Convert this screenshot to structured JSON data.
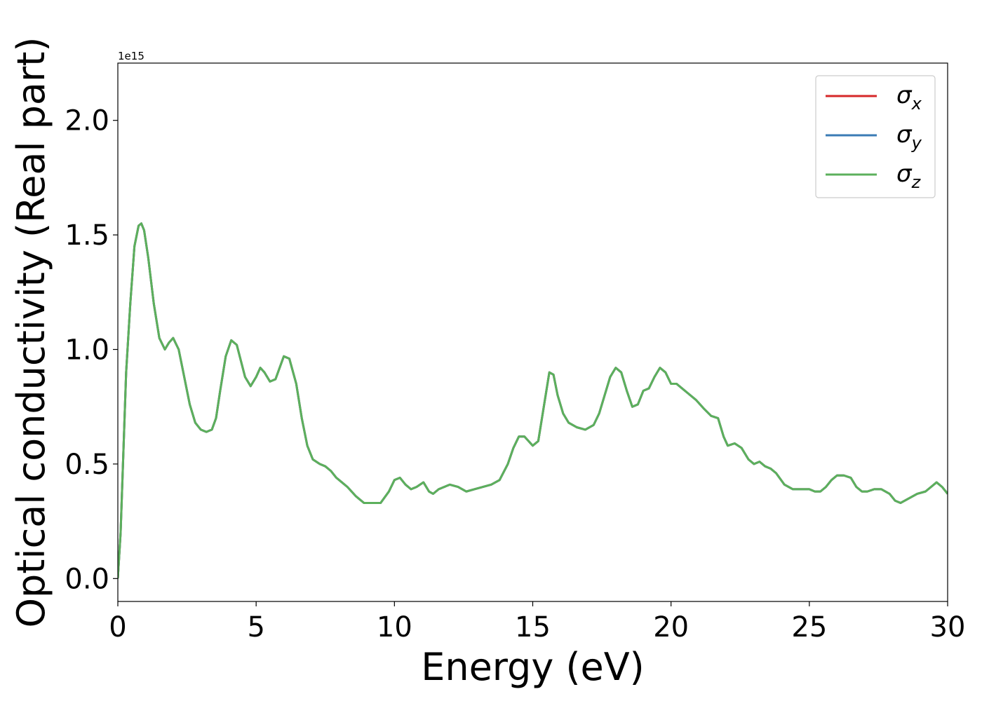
{
  "chart_data": {
    "type": "line",
    "xlabel": "Energy (eV)",
    "ylabel": "Optical conductivity (Real part)",
    "y_offset_label": "1e15",
    "y_scale_factor": 1000000000000000.0,
    "xlim": [
      0,
      30
    ],
    "ylim": [
      -0.1,
      2.25
    ],
    "x_ticks": [
      0,
      5,
      10,
      15,
      20,
      25,
      30
    ],
    "y_ticks": [
      0.0,
      0.5,
      1.0,
      1.5,
      2.0
    ],
    "x_tick_labels": [
      "0",
      "5",
      "10",
      "15",
      "20",
      "25",
      "30"
    ],
    "y_tick_labels": [
      "0.0",
      "0.5",
      "1.0",
      "1.5",
      "2.0"
    ],
    "grid": false,
    "legend_position": "top-right",
    "colors": {
      "sigma_x": "#d62728",
      "sigma_y": "#3a7bb5",
      "sigma_z": "#5cb05c"
    },
    "x": [
      0.0,
      0.1,
      0.2,
      0.3,
      0.45,
      0.6,
      0.75,
      0.85,
      0.95,
      1.1,
      1.3,
      1.5,
      1.7,
      1.85,
      2.0,
      2.2,
      2.4,
      2.6,
      2.8,
      3.0,
      3.2,
      3.4,
      3.55,
      3.7,
      3.9,
      4.1,
      4.3,
      4.45,
      4.6,
      4.8,
      5.0,
      5.15,
      5.3,
      5.5,
      5.7,
      5.85,
      6.0,
      6.2,
      6.45,
      6.65,
      6.85,
      7.05,
      7.3,
      7.5,
      7.7,
      7.9,
      8.1,
      8.3,
      8.6,
      8.9,
      9.2,
      9.5,
      9.8,
      10.0,
      10.2,
      10.4,
      10.6,
      10.8,
      11.05,
      11.25,
      11.4,
      11.6,
      11.8,
      12.0,
      12.3,
      12.6,
      12.9,
      13.2,
      13.5,
      13.8,
      14.1,
      14.3,
      14.5,
      14.7,
      14.85,
      15.0,
      15.2,
      15.4,
      15.6,
      15.75,
      15.9,
      16.1,
      16.3,
      16.6,
      16.9,
      17.2,
      17.4,
      17.6,
      17.8,
      18.0,
      18.2,
      18.4,
      18.6,
      18.8,
      19.0,
      19.2,
      19.4,
      19.6,
      19.8,
      20.0,
      20.2,
      20.4,
      20.6,
      20.9,
      21.2,
      21.45,
      21.7,
      21.9,
      22.05,
      22.3,
      22.55,
      22.8,
      23.0,
      23.2,
      23.4,
      23.6,
      23.8,
      24.1,
      24.4,
      24.7,
      25.0,
      25.2,
      25.4,
      25.6,
      25.8,
      26.0,
      26.25,
      26.5,
      26.7,
      26.9,
      27.1,
      27.35,
      27.6,
      27.9,
      28.1,
      28.3,
      28.6,
      28.9,
      29.2,
      29.4,
      29.6,
      29.8,
      30.0
    ],
    "series": [
      {
        "name": "σ_x",
        "values": [
          0.0,
          0.2,
          0.55,
          0.9,
          1.2,
          1.45,
          1.54,
          1.55,
          1.52,
          1.4,
          1.2,
          1.05,
          1.0,
          1.03,
          1.05,
          1.0,
          0.88,
          0.76,
          0.68,
          0.65,
          0.64,
          0.65,
          0.7,
          0.82,
          0.97,
          1.04,
          1.02,
          0.95,
          0.88,
          0.84,
          0.88,
          0.92,
          0.9,
          0.86,
          0.87,
          0.92,
          0.97,
          0.96,
          0.85,
          0.7,
          0.58,
          0.52,
          0.5,
          0.49,
          0.47,
          0.44,
          0.42,
          0.4,
          0.36,
          0.33,
          0.33,
          0.33,
          0.38,
          0.43,
          0.44,
          0.41,
          0.39,
          0.4,
          0.42,
          0.38,
          0.37,
          0.39,
          0.4,
          0.41,
          0.4,
          0.38,
          0.39,
          0.4,
          0.41,
          0.43,
          0.5,
          0.57,
          0.62,
          0.62,
          0.6,
          0.58,
          0.6,
          0.75,
          0.9,
          0.89,
          0.8,
          0.72,
          0.68,
          0.66,
          0.65,
          0.67,
          0.72,
          0.8,
          0.88,
          0.92,
          0.9,
          0.82,
          0.75,
          0.76,
          0.82,
          0.83,
          0.88,
          0.92,
          0.9,
          0.85,
          0.85,
          0.83,
          0.81,
          0.78,
          0.74,
          0.71,
          0.7,
          0.62,
          0.58,
          0.59,
          0.57,
          0.52,
          0.5,
          0.51,
          0.49,
          0.48,
          0.46,
          0.41,
          0.39,
          0.39,
          0.39,
          0.38,
          0.38,
          0.4,
          0.43,
          0.45,
          0.45,
          0.44,
          0.4,
          0.38,
          0.38,
          0.39,
          0.39,
          0.37,
          0.34,
          0.33,
          0.35,
          0.37,
          0.38,
          0.4,
          0.42,
          0.4,
          0.37
        ]
      },
      {
        "name": "σ_y",
        "values": [
          0.0,
          0.2,
          0.55,
          0.9,
          1.2,
          1.45,
          1.54,
          1.55,
          1.52,
          1.4,
          1.2,
          1.05,
          1.0,
          1.03,
          1.05,
          1.0,
          0.88,
          0.76,
          0.68,
          0.65,
          0.64,
          0.65,
          0.7,
          0.82,
          0.97,
          1.04,
          1.02,
          0.95,
          0.88,
          0.84,
          0.88,
          0.92,
          0.9,
          0.86,
          0.87,
          0.92,
          0.97,
          0.96,
          0.85,
          0.7,
          0.58,
          0.52,
          0.5,
          0.49,
          0.47,
          0.44,
          0.42,
          0.4,
          0.36,
          0.33,
          0.33,
          0.33,
          0.38,
          0.43,
          0.44,
          0.41,
          0.39,
          0.4,
          0.42,
          0.38,
          0.37,
          0.39,
          0.4,
          0.41,
          0.4,
          0.38,
          0.39,
          0.4,
          0.41,
          0.43,
          0.5,
          0.57,
          0.62,
          0.62,
          0.6,
          0.58,
          0.6,
          0.75,
          0.9,
          0.89,
          0.8,
          0.72,
          0.68,
          0.66,
          0.65,
          0.67,
          0.72,
          0.8,
          0.88,
          0.92,
          0.9,
          0.82,
          0.75,
          0.76,
          0.82,
          0.83,
          0.88,
          0.92,
          0.9,
          0.85,
          0.85,
          0.83,
          0.81,
          0.78,
          0.74,
          0.71,
          0.7,
          0.62,
          0.58,
          0.59,
          0.57,
          0.52,
          0.5,
          0.51,
          0.49,
          0.48,
          0.46,
          0.41,
          0.39,
          0.39,
          0.39,
          0.38,
          0.38,
          0.4,
          0.43,
          0.45,
          0.45,
          0.44,
          0.4,
          0.38,
          0.38,
          0.39,
          0.39,
          0.37,
          0.34,
          0.33,
          0.35,
          0.37,
          0.38,
          0.4,
          0.42,
          0.4,
          0.37
        ]
      },
      {
        "name": "σ_z",
        "values": [
          0.0,
          0.2,
          0.55,
          0.9,
          1.2,
          1.45,
          1.54,
          1.55,
          1.52,
          1.4,
          1.2,
          1.05,
          1.0,
          1.03,
          1.05,
          1.0,
          0.88,
          0.76,
          0.68,
          0.65,
          0.64,
          0.65,
          0.7,
          0.82,
          0.97,
          1.04,
          1.02,
          0.95,
          0.88,
          0.84,
          0.88,
          0.92,
          0.9,
          0.86,
          0.87,
          0.92,
          0.97,
          0.96,
          0.85,
          0.7,
          0.58,
          0.52,
          0.5,
          0.49,
          0.47,
          0.44,
          0.42,
          0.4,
          0.36,
          0.33,
          0.33,
          0.33,
          0.38,
          0.43,
          0.44,
          0.41,
          0.39,
          0.4,
          0.42,
          0.38,
          0.37,
          0.39,
          0.4,
          0.41,
          0.4,
          0.38,
          0.39,
          0.4,
          0.41,
          0.43,
          0.5,
          0.57,
          0.62,
          0.62,
          0.6,
          0.58,
          0.6,
          0.75,
          0.9,
          0.89,
          0.8,
          0.72,
          0.68,
          0.66,
          0.65,
          0.67,
          0.72,
          0.8,
          0.88,
          0.92,
          0.9,
          0.82,
          0.75,
          0.76,
          0.82,
          0.83,
          0.88,
          0.92,
          0.9,
          0.85,
          0.85,
          0.83,
          0.81,
          0.78,
          0.74,
          0.71,
          0.7,
          0.62,
          0.58,
          0.59,
          0.57,
          0.52,
          0.5,
          0.51,
          0.49,
          0.48,
          0.46,
          0.41,
          0.39,
          0.39,
          0.39,
          0.38,
          0.38,
          0.4,
          0.43,
          0.45,
          0.45,
          0.44,
          0.4,
          0.38,
          0.38,
          0.39,
          0.39,
          0.37,
          0.34,
          0.33,
          0.35,
          0.37,
          0.38,
          0.4,
          0.42,
          0.4,
          0.37
        ]
      }
    ],
    "legend": [
      {
        "symbol": "σ",
        "sub": "x"
      },
      {
        "symbol": "σ",
        "sub": "y"
      },
      {
        "symbol": "σ",
        "sub": "z"
      }
    ]
  }
}
